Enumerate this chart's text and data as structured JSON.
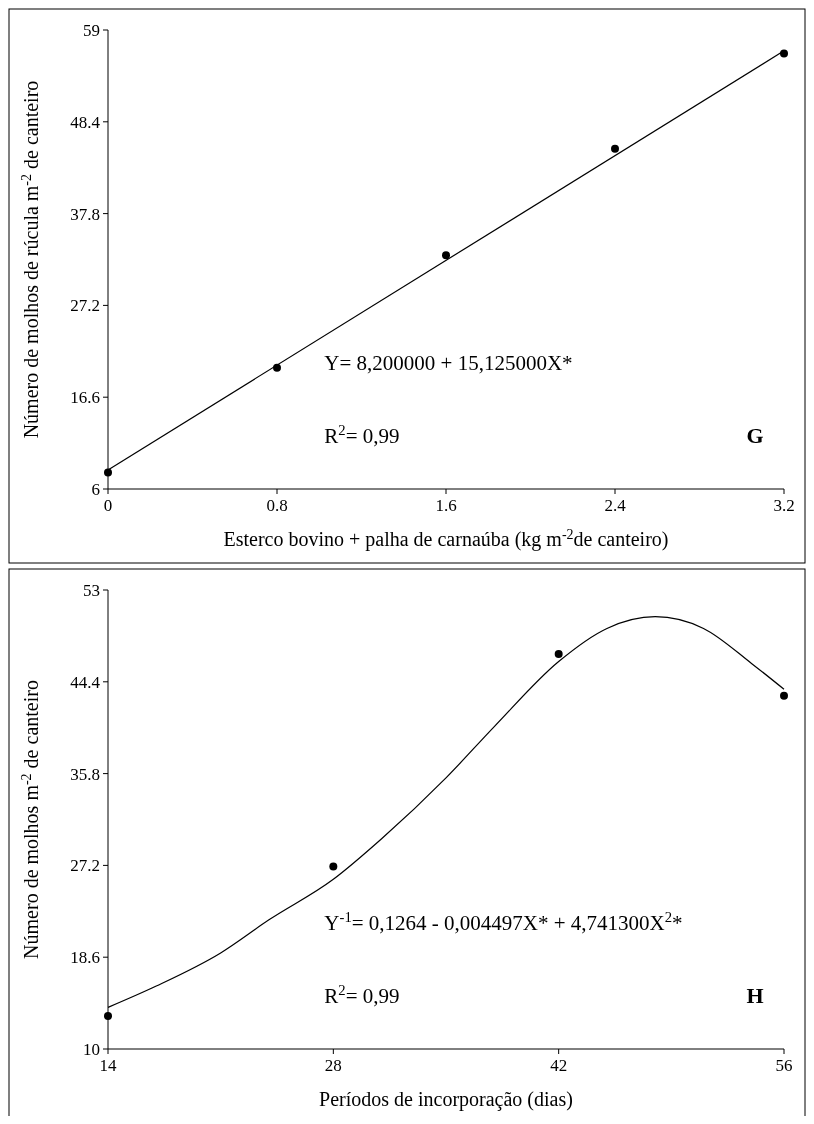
{
  "chart_data": [
    {
      "type": "scatter",
      "xlabel": "Esterco bovino + palha de carnaúba (kg m$^{-2}$de canteiro)",
      "ylabel": "Número de molhos de rúcula m$^{-2}$ de canteiro",
      "annotations": [
        "Y= 8,200000 + 15,125000X*",
        "R$^{2}$= 0,99",
        "G"
      ],
      "series": [
        {
          "color": "#000000",
          "marker": "circle",
          "x": [
            0,
            0.8,
            1.6,
            2.4,
            3.2
          ],
          "values": [
            7.9,
            20.0,
            33.0,
            45.3,
            56.3
          ]
        },
        {
          "type": "line",
          "color": "#000000",
          "marker": "none",
          "x": [
            0,
            3.2
          ],
          "values": [
            8.2,
            56.6
          ]
        }
      ],
      "xlim": [
        0,
        3.2
      ],
      "xticks": [
        0,
        0.8,
        1.6,
        2.4,
        3.2
      ],
      "ylim": [
        6,
        59
      ],
      "yticks": [
        6,
        16.6,
        27.2,
        37.8,
        48.4,
        59
      ],
      "grid": false
    },
    {
      "type": "scatter",
      "xlabel": "Períodos de incorporação (dias)",
      "ylabel": "Número de molhos m$^{-2}$ de canteiro",
      "annotations": [
        "Y$^{-1}$= 0,1264 - 0,004497X*  + 4,741300X$^{2}$*",
        "R$^{2}$= 0,99",
        "H"
      ],
      "series": [
        {
          "color": "#000000",
          "marker": "circle",
          "x": [
            14,
            28,
            42,
            56
          ],
          "values": [
            13.1,
            27.1,
            47.0,
            43.1
          ]
        },
        {
          "type": "line",
          "color": "#000000",
          "marker": "none",
          "x": [
            14,
            17,
            21,
            24,
            28,
            31,
            35,
            38,
            42,
            45,
            48,
            51,
            54,
            56
          ],
          "values": [
            13.9,
            15.9,
            19.0,
            22.1,
            25.9,
            29.7,
            35.4,
            40.2,
            46.3,
            49.4,
            50.5,
            49.4,
            46.1,
            43.7
          ]
        }
      ],
      "xlim": [
        14,
        56
      ],
      "xticks": [
        14,
        28,
        42,
        56
      ],
      "ylim": [
        10,
        53
      ],
      "yticks": [
        10,
        18.6,
        27.2,
        35.8,
        44.4,
        53
      ],
      "grid": false
    }
  ]
}
